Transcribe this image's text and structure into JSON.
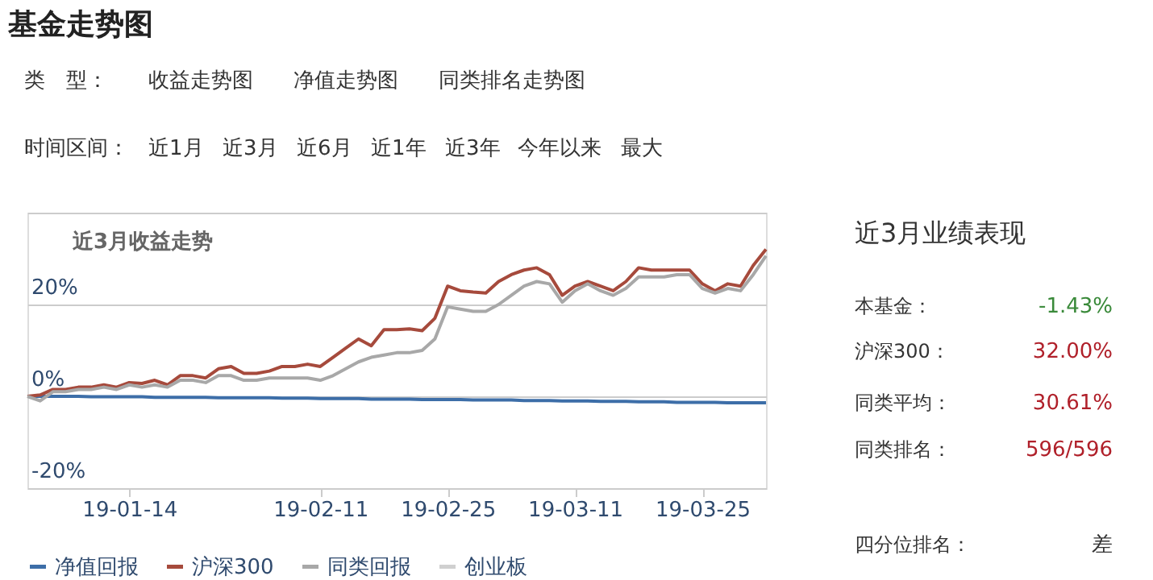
{
  "chart_data": [
    {
      "type": "line",
      "title": "基金走势图",
      "subtitle": "近3月收益走势",
      "annotations": [
        "类　型：",
        "收益走势图",
        "净值走势图",
        "同类排名走势图",
        "时间区间：",
        "近1月",
        "近3月",
        "近6月",
        "近1年",
        "近3年",
        "今年以来",
        "最大"
      ],
      "categories": [
        null,
        null,
        null,
        null,
        null,
        null,
        null,
        null,
        "19-01-14",
        null,
        null,
        null,
        null,
        null,
        null,
        null,
        null,
        null,
        null,
        null,
        null,
        null,
        null,
        "19-02-11",
        null,
        null,
        null,
        null,
        null,
        null,
        null,
        null,
        null,
        "19-02-25",
        null,
        null,
        null,
        null,
        null,
        null,
        null,
        null,
        null,
        "19-03-11",
        null,
        null,
        null,
        null,
        null,
        null,
        null,
        null,
        null,
        "19-03-25",
        null,
        null,
        null,
        null,
        null
      ],
      "series": [
        {
          "name": "净值回报",
          "color": "#3d6ea8",
          "values": [
            0,
            0,
            0,
            0,
            0,
            -0.1,
            -0.1,
            -0.1,
            -0.1,
            -0.1,
            -0.2,
            -0.2,
            -0.2,
            -0.2,
            -0.2,
            -0.3,
            -0.3,
            -0.3,
            -0.3,
            -0.3,
            -0.4,
            -0.4,
            -0.4,
            -0.5,
            -0.5,
            -0.5,
            -0.5,
            -0.6,
            -0.6,
            -0.6,
            -0.6,
            -0.7,
            -0.7,
            -0.7,
            -0.7,
            -0.8,
            -0.8,
            -0.8,
            -0.8,
            -0.9,
            -0.9,
            -0.9,
            -1.0,
            -1.0,
            -1.0,
            -1.1,
            -1.1,
            -1.1,
            -1.2,
            -1.2,
            -1.2,
            -1.3,
            -1.3,
            -1.3,
            -1.3,
            -1.4,
            -1.4,
            -1.4,
            -1.4
          ]
        },
        {
          "name": "沪深300",
          "color": "#a64a3c",
          "values": [
            0,
            0.3,
            1.5,
            1.5,
            2,
            2,
            2.5,
            2,
            3,
            2.8,
            3.5,
            2.5,
            4.5,
            4.5,
            4,
            6,
            6.5,
            5,
            5,
            5.5,
            6.5,
            6.5,
            7,
            6.5,
            8.5,
            10.5,
            12.5,
            11,
            14.5,
            14.5,
            14.7,
            14.3,
            17,
            24,
            23,
            22.7,
            22.5,
            25,
            26.5,
            27.5,
            28,
            26.5,
            22,
            24,
            25,
            24,
            23,
            25,
            28,
            27.5,
            27.5,
            27.5,
            27.5,
            24.5,
            23,
            24.5,
            24,
            28.5,
            32.0
          ]
        },
        {
          "name": "同类回报",
          "color": "#a8a8a8",
          "values": [
            0,
            -1,
            1,
            1,
            1.5,
            1.5,
            2,
            1.5,
            2.5,
            2,
            2.5,
            2,
            3.5,
            3.5,
            3,
            4.5,
            4.5,
            3.5,
            3.5,
            4,
            4,
            4,
            4,
            3.5,
            4.5,
            6,
            7.5,
            8.5,
            9,
            9.5,
            9.5,
            10,
            12.5,
            19.5,
            19,
            18.5,
            18.5,
            20,
            22,
            24,
            25,
            24.5,
            20.5,
            23,
            24.5,
            23,
            22,
            23.5,
            26,
            26,
            26,
            26.5,
            26.5,
            23.5,
            22.5,
            23.5,
            23,
            26.5,
            30.6
          ]
        },
        {
          "name": "创业板",
          "color": "#d0d0d0",
          "values": [
            null,
            null,
            null,
            null,
            null,
            null,
            null,
            null,
            null,
            null,
            null,
            null,
            null,
            null,
            null,
            null,
            null,
            null,
            null,
            null,
            null,
            null,
            null,
            null,
            null,
            null,
            null,
            null,
            null,
            null,
            null,
            null,
            null,
            null,
            null,
            null,
            null,
            null,
            null,
            null,
            null,
            null,
            null,
            null,
            null,
            null,
            null,
            null,
            null,
            null,
            null,
            null,
            null,
            null,
            null,
            null,
            null,
            null,
            null
          ]
        }
      ],
      "ylim": [
        -20,
        40
      ],
      "yticks": [
        {
          "value": -20,
          "label": "-20%"
        },
        {
          "value": 0,
          "label": "0%"
        },
        {
          "value": 20,
          "label": "20%"
        },
        {
          "value": 40,
          "label": null
        }
      ],
      "grid": "y",
      "legend": "bottom",
      "marker": "none",
      "line_style": "solid"
    },
    {
      "type": "other",
      "title": "近3月业绩表现",
      "annotations": [
        "本基金：",
        "-1.43%",
        "沪深300：",
        "32.00%",
        "同类平均：",
        "30.61%",
        "同类排名：",
        "596/596",
        "四分位排名：",
        "差"
      ]
    }
  ]
}
